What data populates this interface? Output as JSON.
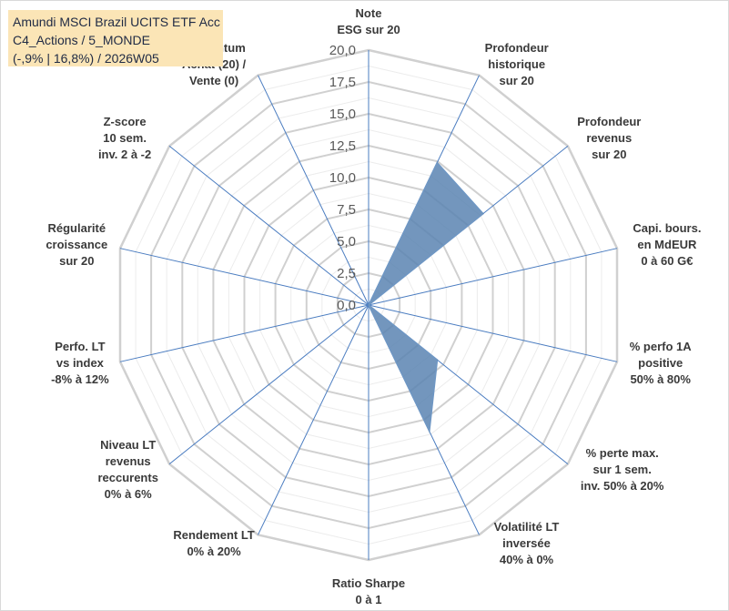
{
  "title": {
    "line1": "Amundi MSCI Brazil UCITS ETF Acc",
    "line2": "C4_Actions / 5_MONDE",
    "line3": "(-,9% | 16,8%) / 2026W05"
  },
  "chart_data": {
    "type": "radar",
    "rmin": 0,
    "rmax": 20,
    "ticks": [
      "0,0",
      "2,5",
      "5,0",
      "7,5",
      "10,0",
      "12,5",
      "15,0",
      "17,5",
      "20,0"
    ],
    "grid": true,
    "axes": [
      {
        "name": "Note ESG sur 20",
        "lines": [
          "Note",
          "ESG sur 20"
        ]
      },
      {
        "name": "Profondeur historique sur 20",
        "lines": [
          "Profondeur",
          "historique",
          "sur 20"
        ]
      },
      {
        "name": "Profondeur revenus sur 20",
        "lines": [
          "Profondeur",
          "revenus",
          "sur 20"
        ]
      },
      {
        "name": "Capi. bours. en MdEUR 0 à 60 G€",
        "lines": [
          "Capi. bours.",
          "en MdEUR",
          "0 à 60 G€"
        ]
      },
      {
        "name": "% perfo 1A positive 50% à 80%",
        "lines": [
          "% perfo 1A",
          "positive",
          "50% à 80%"
        ]
      },
      {
        "name": "% perte max. sur 1 sem. inv. 50% à 20%",
        "lines": [
          "% perte max.",
          "sur 1 sem.",
          "inv. 50% à 20%"
        ]
      },
      {
        "name": "Volatilité LT inversée 40% à 0%",
        "lines": [
          "Volatilité LT",
          "inversée",
          "40% à 0%"
        ]
      },
      {
        "name": "Ratio Sharpe 0 à 1",
        "lines": [
          "Ratio Sharpe",
          "0 à 1"
        ]
      },
      {
        "name": "Rendement LT 0% à 20%",
        "lines": [
          "Rendement LT",
          "0% à 20%"
        ]
      },
      {
        "name": "Niveau LT revenus reccurents 0% à 6%",
        "lines": [
          "Niveau LT",
          "revenus",
          "reccurents",
          "0% à 6%"
        ]
      },
      {
        "name": "Perfo. LT vs index -8% à 12%",
        "lines": [
          "Perfo. LT",
          "vs index",
          "-8% à 12%"
        ]
      },
      {
        "name": "Régularité croissance sur 20",
        "lines": [
          "Régularité",
          "croissance",
          "sur 20"
        ]
      },
      {
        "name": "Z-score 10 sem. inv. 2 à -2",
        "lines": [
          "Z-score",
          "10 sem.",
          "inv. 2 à -2"
        ]
      },
      {
        "name": "Momentum Achat (20) / Vente (0)",
        "lines": [
          "Momentum",
          "Achat (20) /",
          "Vente (0)"
        ]
      }
    ],
    "series": [
      {
        "name": "Amundi MSCI Brazil UCITS ETF Acc",
        "values": [
          0,
          12.4,
          11.5,
          0,
          0,
          6.9,
          11.0,
          0,
          0,
          0,
          0,
          0,
          0,
          0
        ],
        "color": "#5b84b1"
      }
    ]
  }
}
